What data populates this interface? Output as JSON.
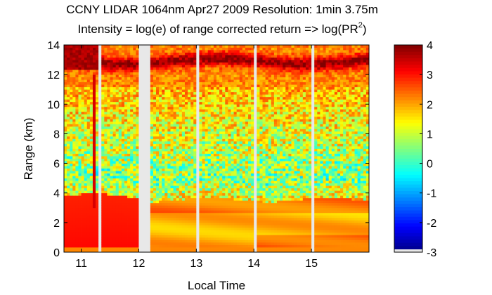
{
  "chart_data": {
    "type": "heatmap",
    "title": "CCNY LIDAR 1064nm Apr27 2009 Resolution: 1min 3.75m",
    "subtitle": {
      "main": "Intensity = log(e) of range corrected return => log(PR",
      "sup": "2",
      "end": ")"
    },
    "xlabel": "Local Time",
    "ylabel": "Range (km)",
    "xlim": [
      10.7,
      16.0
    ],
    "ylim": [
      0,
      14
    ],
    "x_ticks": [
      11,
      12,
      13,
      14,
      15
    ],
    "x_tick_labels": [
      "11",
      "12",
      "13",
      "14",
      "15"
    ],
    "y_ticks": [
      0,
      2,
      4,
      6,
      8,
      10,
      12,
      14
    ],
    "y_tick_labels": [
      "0",
      "2",
      "4",
      "6",
      "8",
      "10",
      "12",
      "14"
    ],
    "colorbar": {
      "colormap": "jet",
      "clim": [
        -3,
        4
      ],
      "ticks": [
        4,
        3,
        2,
        1,
        0,
        -1,
        -2,
        -3
      ],
      "tick_labels": [
        "4",
        "3",
        "2",
        "1",
        "0",
        "-1",
        "-2",
        "-3"
      ]
    },
    "data_gaps_local_time": [
      [
        11.28,
        11.33
      ],
      [
        11.98,
        12.18
      ],
      [
        12.98,
        13.07
      ],
      [
        13.98,
        14.07
      ],
      [
        14.98,
        15.04
      ]
    ],
    "layers": {
      "boundary_layer_top_km": 3.8,
      "aloft_cloud_km": [
        11.2,
        14.0
      ],
      "surface_high_km": [
        0,
        0.3
      ]
    }
  }
}
